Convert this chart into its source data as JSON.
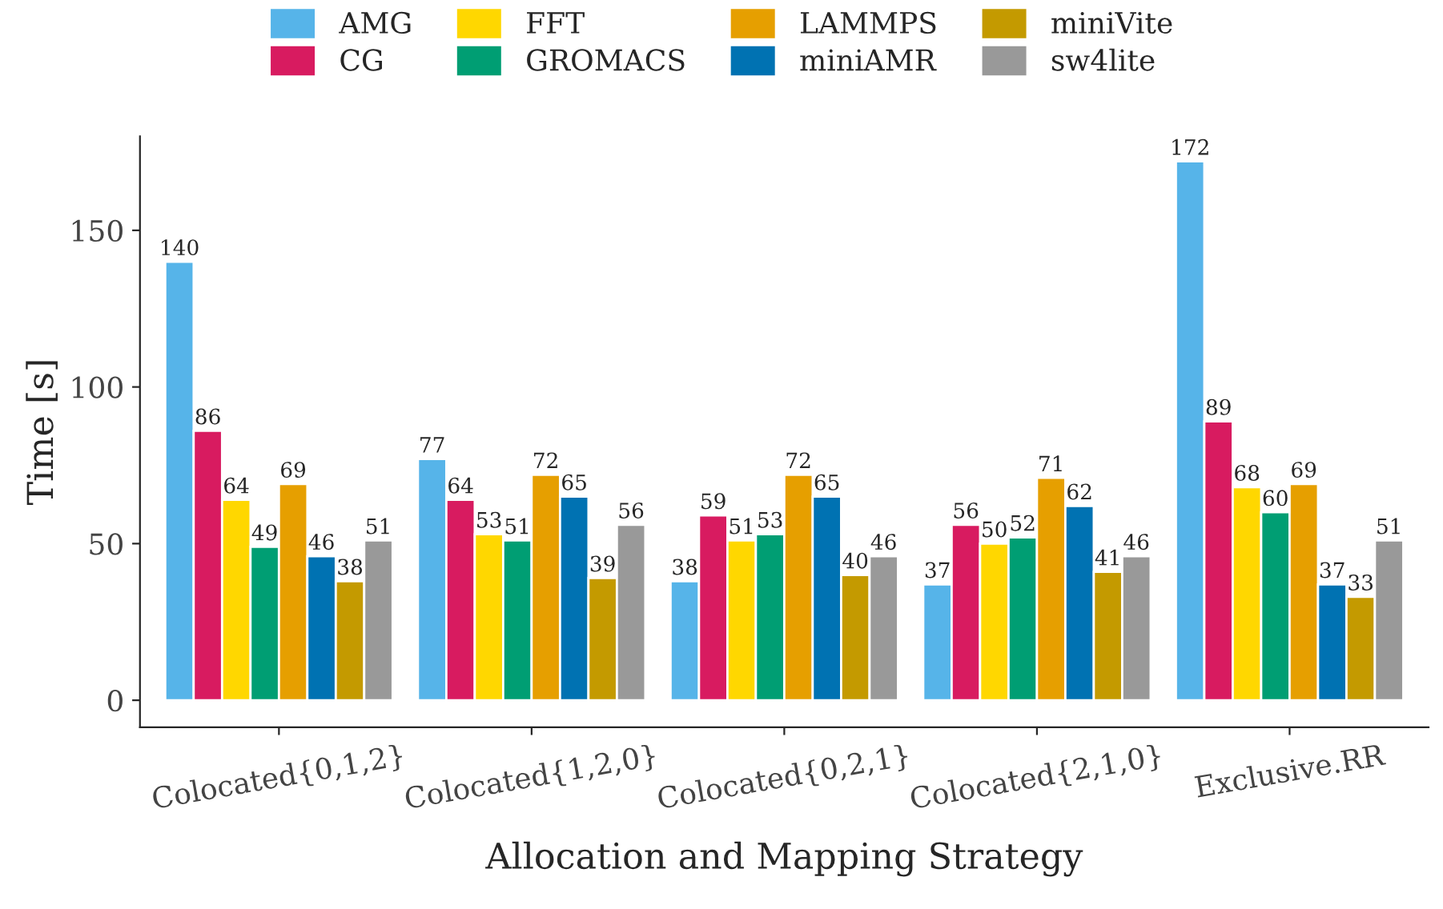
{
  "chart_data": {
    "type": "bar",
    "xlabel": "Allocation and Mapping Strategy",
    "ylabel": "Time [s]",
    "categories": [
      "Colocated{0,1,2}",
      "Colocated{1,2,0}",
      "Colocated{0,2,1}",
      "Colocated{2,1,0}",
      "Exclusive.RR"
    ],
    "series": [
      {
        "name": "AMG",
        "color": "#56b4e9",
        "values": [
          140,
          77,
          38,
          37,
          172
        ]
      },
      {
        "name": "CG",
        "color": "#d81b60",
        "values": [
          86,
          64,
          59,
          56,
          89
        ]
      },
      {
        "name": "FFT",
        "color": "#ffd700",
        "values": [
          64,
          53,
          51,
          50,
          68
        ]
      },
      {
        "name": "GROMACS",
        "color": "#009e73",
        "values": [
          49,
          51,
          53,
          52,
          60
        ]
      },
      {
        "name": "LAMMPS",
        "color": "#e69f00",
        "values": [
          69,
          72,
          72,
          71,
          69
        ]
      },
      {
        "name": "miniAMR",
        "color": "#0072b2",
        "values": [
          46,
          65,
          65,
          62,
          37
        ]
      },
      {
        "name": "miniVite",
        "color": "#c49a00",
        "values": [
          38,
          39,
          40,
          41,
          33
        ]
      },
      {
        "name": "sw4lite",
        "color": "#999999",
        "values": [
          51,
          56,
          46,
          46,
          51
        ]
      }
    ],
    "ylim": [
      -8.6,
      180
    ],
    "yticks": [
      0,
      50,
      100,
      150
    ],
    "data_labels": true,
    "legend": "top",
    "grid": false
  }
}
